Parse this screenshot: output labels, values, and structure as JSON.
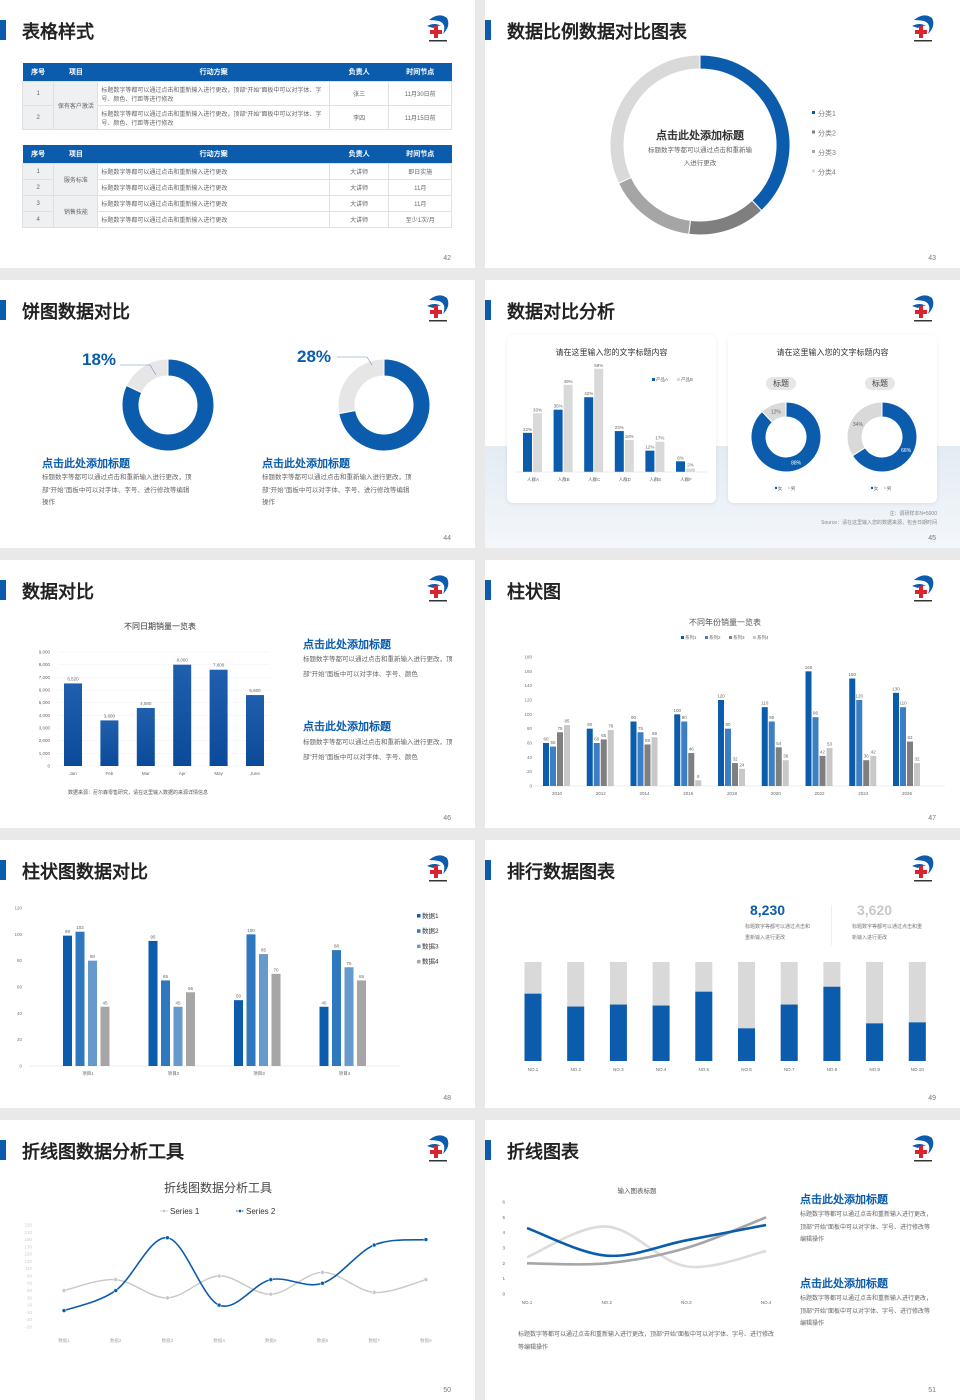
{
  "colors": {
    "accent": "#0b5cad",
    "accent2": "#3d7fc4",
    "gray": "#7f7f7f",
    "light_gray": "#d9d9d9"
  },
  "logo_icon": "hospital-cross-logo-icon",
  "s42": {
    "title": "表格样式",
    "page": "42",
    "table1": {
      "headers": [
        "序号",
        "项目",
        "行动方案",
        "负责人",
        "时间节点"
      ],
      "groups": [
        {
          "project": "保有客户激活",
          "rows": [
            {
              "no": "1",
              "plan": "标题数字等都可以通过点击和重新输入进行更改，顶部“开始”面板中可以对字体、字号、颜色、行距等进行修改",
              "owner": "张三",
              "time": "11月30日前"
            },
            {
              "no": "2",
              "plan": "标题数字等都可以通过点击和重新输入进行更改，顶部“开始”面板中可以对字体、字号、颜色、行距等进行修改",
              "owner": "李四",
              "time": "11月15日前"
            }
          ]
        }
      ]
    },
    "table2": {
      "headers": [
        "序号",
        "项目",
        "行动方案",
        "负责人",
        "时间节点"
      ],
      "groups": [
        {
          "project": "服务标准",
          "rows": [
            {
              "no": "1",
              "plan": "标题数字等都可以通过点击和重新输入进行更改",
              "owner": "大讲师",
              "time": "即日实施"
            },
            {
              "no": "2",
              "plan": "标题数字等都可以通过点击和重新输入进行更改",
              "owner": "大讲师",
              "time": "11月"
            }
          ]
        },
        {
          "project": "销售技能",
          "rows": [
            {
              "no": "3",
              "plan": "标题数字等都可以通过点击和重新输入进行更改",
              "owner": "大讲师",
              "time": "11月"
            },
            {
              "no": "4",
              "plan": "标题数字等都可以通过点击和重新输入进行更改",
              "owner": "大讲师",
              "time": "至少1次/月"
            }
          ]
        }
      ]
    }
  },
  "s43": {
    "title": "数据比例数据对比图表",
    "page": "43",
    "center_title": "点击此处添加标题",
    "center_text": "标题数字等都可以通过点击和重新输入进行更改"
  },
  "s44": {
    "title": "饼图数据对比",
    "page": "44",
    "items": [
      {
        "pct": "18%",
        "heading": "点击此处添加标题",
        "text": "标题数字等都可以通过点击和重新输入进行更改，顶部“开始”面板中可以对字体、字号、进行修改等编辑操作"
      },
      {
        "pct": "28%",
        "heading": "点击此处添加标题",
        "text": "标题数字等都可以通过点击和重新输入进行更改，顶部“开始”面板中可以对字体、字号、进行修改等编辑操作"
      }
    ]
  },
  "s45": {
    "title": "数据对比分析",
    "page": "45",
    "card1_title": "请在这里输入您的文字标题内容",
    "card2_title": "请在这里输入您的文字标题内容",
    "pill1": "标题",
    "pill2": "标题",
    "note": "注：调研样本N=5000",
    "source": "Source：请在这里输入您的数据来源，包含日期时间"
  },
  "s46": {
    "title": "数据对比",
    "page": "46",
    "source": "数据来源：尼尔森零售研究，请在这里输入数据的来源详情信息",
    "blocks": [
      {
        "heading": "点击此处添加标题",
        "text": "标题数字等都可以通过点击和重新输入进行更改，顶部“开始”面板中可以对字体、字号、颜色"
      },
      {
        "heading": "点击此处添加标题",
        "text": "标题数字等都可以通过点击和重新输入进行更改，顶部“开始”面板中可以对字体、字号、颜色"
      }
    ]
  },
  "s47": {
    "title": "柱状图",
    "page": "47"
  },
  "s48": {
    "title": "柱状图数据对比",
    "page": "48"
  },
  "s49": {
    "title": "排行数据图表",
    "page": "49",
    "stats": [
      {
        "value": "8,230",
        "text": "标题数字等都可以通过点击和重新输入进行更改"
      },
      {
        "value": "3,620",
        "text": "标题数字等都可以通过点击和重新输入进行更改"
      }
    ]
  },
  "s50": {
    "title": "折线图数据分析工具",
    "page": "50"
  },
  "s51": {
    "title": "折线图表",
    "page": "51",
    "bottom_text": "标题数字等都可以通过点击和重新输入进行更改，顶部“开始”面板中可以对字体、字号、进行修改等编辑操作",
    "blocks": [
      {
        "heading": "点击此处添加标题",
        "text": "标题数字等都可以通过点击和重新输入进行更改，顶部“开始”面板中可以对字体、字号、进行修改等编辑操作"
      },
      {
        "heading": "点击此处添加标题",
        "text": "标题数字等都可以通过点击和重新输入进行更改，顶部“开始”面板中可以对字体、字号、进行修改等编辑操作"
      }
    ]
  },
  "chart_data": [
    {
      "id": "c43",
      "type": "pie",
      "donut": true,
      "categories": [
        "分类1",
        "分类2",
        "分类3",
        "分类4"
      ],
      "values": [
        38,
        14,
        16,
        32
      ],
      "colors": [
        "#0b5cad",
        "#7f7f7f",
        "#a5a5a5",
        "#d9d9d9"
      ],
      "legend": "right"
    },
    {
      "id": "c44a",
      "type": "pie",
      "donut": true,
      "values": [
        82,
        18
      ],
      "colors": [
        "#0b5cad",
        "#e6e6e6"
      ]
    },
    {
      "id": "c44b",
      "type": "pie",
      "donut": true,
      "values": [
        72,
        28
      ],
      "colors": [
        "#0b5cad",
        "#e6e6e6"
      ]
    },
    {
      "id": "c45bar",
      "type": "bar",
      "categories": [
        "人群A",
        "人群B",
        "人群C",
        "人群D",
        "人群E",
        "人群F"
      ],
      "series": [
        {
          "name": "产品A",
          "values": [
            22,
            35,
            42,
            23,
            12,
            6
          ],
          "color": "#0b5cad"
        },
        {
          "name": "产品B",
          "values": [
            33,
            49,
            58,
            18,
            17,
            2
          ],
          "color": "#d9d9d9"
        }
      ],
      "unit": "%",
      "legend": "top-right"
    },
    {
      "id": "c45d1",
      "type": "pie",
      "donut": true,
      "categories": [
        "女",
        "男"
      ],
      "values": [
        88,
        12
      ],
      "colors": [
        "#0b5cad",
        "#d9d9d9"
      ],
      "legend": "bottom"
    },
    {
      "id": "c45d2",
      "type": "pie",
      "donut": true,
      "categories": [
        "女",
        "男"
      ],
      "values": [
        66,
        34
      ],
      "colors": [
        "#0b5cad",
        "#d9d9d9"
      ],
      "legend": "bottom"
    },
    {
      "id": "c46",
      "type": "bar",
      "title": "不同日期销量一览表",
      "categories": [
        "Jan",
        "Feb",
        "Mar",
        "Apr",
        "May",
        "June"
      ],
      "values": [
        6520,
        3600,
        4580,
        8000,
        7600,
        5600
      ],
      "ylim": [
        0,
        9000
      ],
      "yticks": [
        0,
        1000,
        2000,
        3000,
        4000,
        5000,
        6000,
        7000,
        8000,
        9000
      ],
      "grid": true
    },
    {
      "id": "c47",
      "type": "bar",
      "title": "不同年份销量一览表",
      "categories": [
        "2010",
        "2012",
        "2014",
        "2016",
        "2018",
        "2020",
        "2022",
        "2024",
        "2026"
      ],
      "series": [
        {
          "name": "系列1",
          "values": [
            60,
            80,
            90,
            100,
            120,
            110,
            160,
            150,
            130
          ],
          "color": "#0b5cad"
        },
        {
          "name": "系列2",
          "values": [
            55,
            60,
            75,
            90,
            80,
            90,
            96,
            120,
            110
          ],
          "color": "#3d7fc4"
        },
        {
          "name": "系列3",
          "values": [
            75,
            65,
            58,
            46,
            32,
            54,
            42,
            36,
            62
          ],
          "color": "#7f7f7f"
        },
        {
          "name": "系列4",
          "values": [
            85,
            78,
            68,
            8,
            24,
            36,
            53,
            42,
            32
          ],
          "color": "#c8c8c8"
        }
      ],
      "ylim": [
        0,
        180
      ],
      "yticks": [
        0,
        20,
        40,
        60,
        80,
        100,
        120,
        140,
        160,
        180
      ],
      "legend": "top"
    },
    {
      "id": "c48",
      "type": "bar",
      "categories": [
        "项目1",
        "项目2",
        "项目3",
        "项目4"
      ],
      "series": [
        {
          "name": "数据1",
          "values": [
            99,
            95,
            50,
            45
          ],
          "color": "#0b5cad"
        },
        {
          "name": "数据2",
          "values": [
            102,
            65,
            100,
            88
          ],
          "color": "#2f78c0"
        },
        {
          "name": "数据3",
          "values": [
            80,
            45,
            85,
            75
          ],
          "color": "#6699cc"
        },
        {
          "name": "数据4",
          "values": [
            45,
            56,
            70,
            65
          ],
          "color": "#a6a6a6"
        }
      ],
      "ylim": [
        0,
        120
      ],
      "yticks": [
        0,
        20,
        40,
        60,
        80,
        100,
        120
      ],
      "legend": "right"
    },
    {
      "id": "c49",
      "type": "bar",
      "stacked_percent": true,
      "categories": [
        "NO.1",
        "NO.2",
        "NO.3",
        "NO.4",
        "NO.5",
        "NO.6",
        "NO.7",
        "NO.8",
        "NO.9",
        "NO.10"
      ],
      "values": [
        0.68,
        0.55,
        0.57,
        0.56,
        0.7,
        0.33,
        0.57,
        0.75,
        0.38,
        0.39
      ],
      "colors": [
        "#0b5cad",
        "#d9d9d9"
      ]
    },
    {
      "id": "c50",
      "type": "line",
      "title": "折线图数据分析工具",
      "categories": [
        "数据1",
        "数据2",
        "数据3",
        "数据4",
        "数据5",
        "数据6",
        "数据7",
        "数据8"
      ],
      "series": [
        {
          "name": "Series 1",
          "values": [
            50,
            80,
            30,
            90,
            40,
            100,
            45,
            80
          ],
          "color": "#c8c8c8"
        },
        {
          "name": "Series 2",
          "values": [
            -5,
            50,
            195,
            10,
            80,
            70,
            175,
            190
          ],
          "color": "#0b5cad"
        }
      ],
      "ylim": [
        -50,
        230
      ],
      "yticks": [
        230,
        210,
        190,
        170,
        150,
        130,
        110,
        90,
        70,
        50,
        30,
        10,
        -10,
        -30,
        -50
      ],
      "legend": "top",
      "smooth": true
    },
    {
      "id": "c51",
      "type": "line",
      "title": "输入图表标题",
      "categories": [
        "NO.1",
        "NO.2",
        "NO.3",
        "NO.4"
      ],
      "series": [
        {
          "values": [
            4.3,
            2.5,
            3.5,
            4.5
          ],
          "color": "#0b5cad"
        },
        {
          "values": [
            2.4,
            4.4,
            1.8,
            2.8
          ],
          "color": "#dcdcdc"
        },
        {
          "values": [
            2,
            2,
            3,
            5
          ],
          "color": "#a6a6a6"
        }
      ],
      "ylim": [
        0,
        6
      ],
      "yticks": [
        0,
        1,
        2,
        3,
        4,
        5,
        6
      ],
      "smooth": true
    }
  ]
}
